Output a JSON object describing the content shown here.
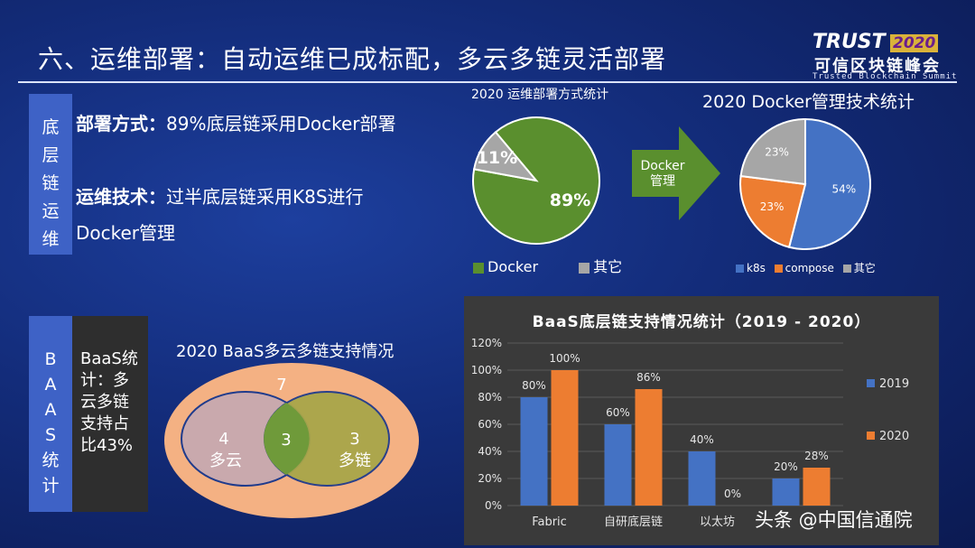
{
  "slide": {
    "title": "六、运维部署：自动运维已成标配，多云多链灵活部署",
    "credit": "头条 @中国信通院"
  },
  "logo": {
    "trust": "TRUST",
    "year": "2020",
    "cn": "可信区块链峰会",
    "en": "Trusted Blockchain Summit"
  },
  "ops": {
    "side_label": "底层链运维",
    "deploy_label": "部署方式：",
    "deploy_text": "89%底层链采用Docker部署",
    "tech_label": "运维技术：",
    "tech_text_1": "过半底层链采用K8S进行",
    "tech_text_2": "Docker管理"
  },
  "baas": {
    "side_label": "BAAS统计",
    "stat_text": "BaaS统计：多云多链支持占比43%"
  },
  "arrow": {
    "label": "Docker管理"
  },
  "colors": {
    "green": "#5a8f2e",
    "gray": "#a6a6a6",
    "blue": "#4472c4",
    "orange": "#ed7d31",
    "venn_outer": "#f4b183",
    "venn_left": "#c9a9ad",
    "venn_right": "#a9a64a"
  },
  "chart_data": [
    {
      "type": "pie",
      "title": "2020 运维部署方式统计",
      "labels": [
        "Docker",
        "其它"
      ],
      "values": [
        89,
        11
      ],
      "data_labels": [
        "89%",
        "11%"
      ],
      "legend": "bottom"
    },
    {
      "type": "pie",
      "title": "2020 Docker管理技术统计",
      "labels": [
        "k8s",
        "compose",
        "其它"
      ],
      "values": [
        54,
        23,
        23
      ],
      "data_labels": [
        "54%",
        "23%",
        "23%"
      ],
      "legend": "bottom"
    },
    {
      "type": "venn",
      "title": "2020 BaaS多云多链支持情况",
      "sets": [
        {
          "name": "多云",
          "only": 4
        },
        {
          "name": "多链",
          "only": 3
        }
      ],
      "intersection": 3,
      "outside": 7
    },
    {
      "type": "bar",
      "title": "BaaS底层链支持情况统计（2019 - 2020）",
      "categories": [
        "Fabric",
        "自研底层链",
        "以太坊",
        ""
      ],
      "series": [
        {
          "name": "2019",
          "values": [
            80,
            60,
            40,
            20
          ],
          "labels": [
            "80%",
            "60%",
            "40%",
            "20%"
          ]
        },
        {
          "name": "2020",
          "values": [
            100,
            86,
            0,
            28
          ],
          "labels": [
            "100%",
            "86%",
            "0%",
            "28%"
          ]
        }
      ],
      "ylim": [
        0,
        120
      ],
      "yticks": [
        "0%",
        "20%",
        "40%",
        "60%",
        "80%",
        "100%",
        "120%"
      ],
      "legend": "right"
    }
  ]
}
